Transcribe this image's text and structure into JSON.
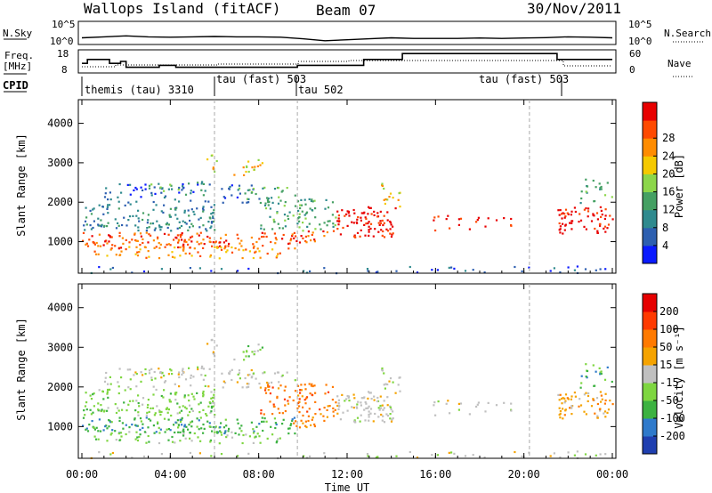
{
  "header": {
    "site": "Wallops Island (fitACF)",
    "beam": "Beam 07",
    "date": "30/Nov/2011"
  },
  "colors": {
    "power_scale": [
      "#0a1aff",
      "#2d5fb0",
      "#2f8a8e",
      "#45a063",
      "#8cd64a",
      "#f5c900",
      "#ff8c00",
      "#ff4a00",
      "#e80000"
    ],
    "velocity_scale": [
      "#1f3fb0",
      "#2f7acb",
      "#3cb241",
      "#7ed640",
      "#c0c0c0",
      "#f5a300",
      "#ff7a00",
      "#ff3a00",
      "#e60000"
    ]
  },
  "chart_data": [
    {
      "type": "line",
      "name": "N.Sky / N.Search",
      "left_label": "N.Sky",
      "right_label": "N.Search",
      "y_ticks": [
        "10^5",
        "10^0"
      ],
      "right_ticks": [
        "10^5",
        "10^0"
      ],
      "x": [
        "00:00",
        "01:00",
        "02:00",
        "03:00",
        "04:00",
        "05:00",
        "06:00",
        "07:00",
        "08:00",
        "09:00",
        "10:00",
        "11:00",
        "12:00",
        "13:00",
        "14:00",
        "15:00",
        "16:00",
        "17:00",
        "18:00",
        "19:00",
        "20:00",
        "21:00",
        "22:00",
        "23:00",
        "24:00"
      ],
      "series": [
        {
          "values": [
            0.25,
            0.3,
            0.35,
            0.3,
            0.28,
            0.3,
            0.32,
            0.3,
            0.3,
            0.28,
            0.2,
            0.1,
            0.15,
            0.2,
            0.25,
            0.22,
            0.22,
            0.22,
            0.24,
            0.22,
            0.24,
            0.26,
            0.3,
            0.28,
            0.25
          ]
        }
      ]
    },
    {
      "type": "line",
      "name": "Freq / Nave",
      "left_label": "Freq.",
      "left_unit": "[MHz]",
      "right_label": "Nave",
      "y_ticks": [
        18,
        8
      ],
      "right_ticks": [
        60,
        0
      ],
      "x": [
        "00:00",
        "00:15",
        "00:45",
        "01:15",
        "01:45",
        "02:00",
        "03:30",
        "04:15",
        "05:00",
        "06:00",
        "07:00",
        "08:00",
        "09:00",
        "09:45",
        "10:30",
        "11:00",
        "11:45",
        "12:45",
        "13:30",
        "14:30",
        "15:00",
        "16:00",
        "21:30",
        "22:00",
        "24:00"
      ],
      "series": [
        {
          "name": "Freq",
          "values": [
            12,
            14,
            14,
            12,
            13,
            10,
            11,
            10,
            10,
            10,
            10,
            10,
            10,
            11,
            11,
            11,
            11,
            14,
            14,
            17,
            17,
            17,
            14,
            14,
            14
          ]
        }
      ]
    },
    {
      "type": "heatmap",
      "name": "Power",
      "cpid_row": [
        {
          "label": "themis (tau) 3310",
          "start": "00:00",
          "end": "06:00"
        },
        {
          "label": "tau (fast) 503",
          "start": "06:00",
          "end": "09:45"
        },
        {
          "label": "tau 502",
          "start": "09:45",
          "end": "21:45"
        },
        {
          "label": "tau (fast) 503",
          "start": "21:45",
          "end": "24:00"
        }
      ],
      "ylabel": "Slant Range [km]",
      "y_ticks": [
        1000,
        2000,
        3000,
        4000
      ],
      "ylim": [
        200,
        4600
      ],
      "colorbar_label": "Power [dB]",
      "colorbar_ticks": [
        4,
        8,
        12,
        16,
        20,
        24,
        28
      ]
    },
    {
      "type": "heatmap",
      "name": "Velocity",
      "ylabel": "Slant Range [km]",
      "y_ticks": [
        1000,
        2000,
        3000,
        4000
      ],
      "ylim": [
        200,
        4600
      ],
      "colorbar_label": "Velocity [m s⁻¹]",
      "colorbar_ticks": [
        200,
        100,
        50,
        15,
        -15,
        -50,
        -100,
        -200
      ],
      "xlabel": "Time UT",
      "x_ticks": [
        "00:00",
        "04:00",
        "08:00",
        "12:00",
        "16:00",
        "20:00",
        "00:00"
      ]
    }
  ]
}
